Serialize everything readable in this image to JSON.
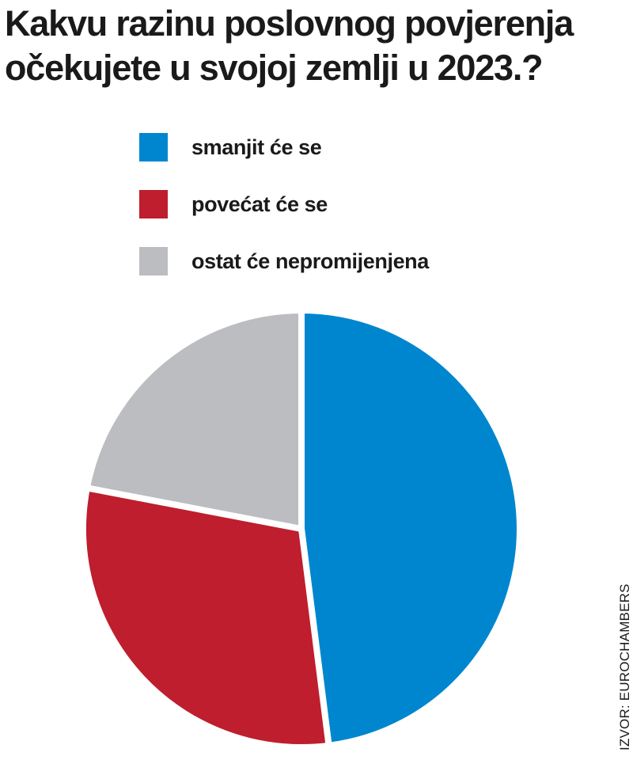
{
  "title_lines": [
    "Kakvu razinu poslovnog povjerenja",
    "očekujete u svojoj zemlji u 2023.?"
  ],
  "source": "IZVOR: EUROCHAMBERS",
  "chart_data": {
    "type": "pie",
    "title": "Kakvu razinu poslovnog povjerenja očekujete u svojoj zemlji u 2023.?",
    "legend_position": "top",
    "slices": [
      {
        "label": "smanjit će se",
        "value": 48,
        "color": "#0086cf"
      },
      {
        "label": "povećat će se",
        "value": 30,
        "color": "#be1e2d"
      },
      {
        "label": "ostat će nepromijenjena",
        "value": 22,
        "color": "#bcbdc0"
      }
    ]
  }
}
